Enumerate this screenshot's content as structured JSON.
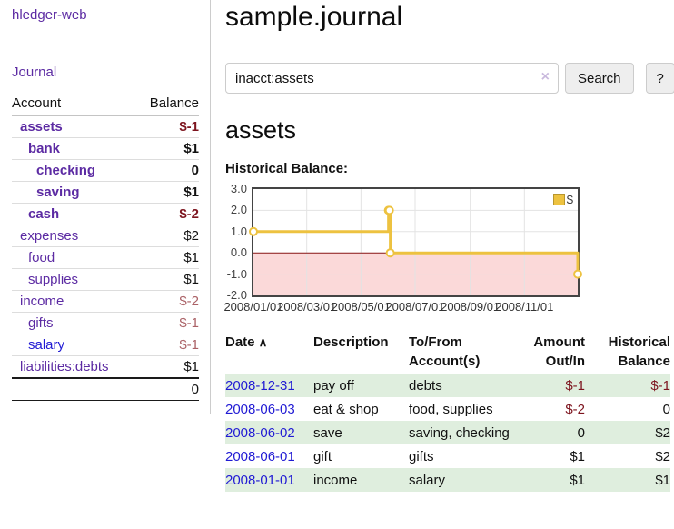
{
  "sidebar": {
    "app_title": "hledger-web",
    "nav": {
      "journal_label": "Journal"
    },
    "accounts_table": {
      "headers": {
        "account": "Account",
        "balance": "Balance"
      },
      "rows": [
        {
          "name": "assets",
          "balance": "$-1"
        },
        {
          "name": "bank",
          "balance": "$1"
        },
        {
          "name": "checking",
          "balance": "0"
        },
        {
          "name": "saving",
          "balance": "$1"
        },
        {
          "name": "cash",
          "balance": "$-2"
        },
        {
          "name": "expenses",
          "balance": "$2"
        },
        {
          "name": "food",
          "balance": "$1"
        },
        {
          "name": "supplies",
          "balance": "$1"
        },
        {
          "name": "income",
          "balance": "$-2"
        },
        {
          "name": "gifts",
          "balance": "$-1"
        },
        {
          "name": "salary",
          "balance": "$-1"
        },
        {
          "name": "liabilities:debts",
          "balance": "$1"
        }
      ],
      "total": "0"
    }
  },
  "header": {
    "title": "sample.journal"
  },
  "search": {
    "value": "inacct:assets",
    "clear_icon": "×",
    "button_label": "Search",
    "help_label": "?"
  },
  "account_page": {
    "title": "assets",
    "chart_label": "Historical Balance:"
  },
  "chart_data": {
    "type": "line",
    "title": "Historical Balance:",
    "series": [
      {
        "name": "$",
        "step": true,
        "points": [
          [
            "2008-01-01",
            1
          ],
          [
            "2008-06-01",
            2
          ],
          [
            "2008-06-02",
            2
          ],
          [
            "2008-06-03",
            0
          ],
          [
            "2008-12-31",
            -1
          ]
        ]
      }
    ],
    "xlim": [
      "2008-01-01",
      "2008-12-31"
    ],
    "ylim": [
      -2,
      3
    ],
    "y_ticks": [
      3,
      2,
      1,
      0,
      -1,
      -2
    ],
    "x_ticks": [
      "2008/01/01",
      "2008/03/01",
      "2008/05/01",
      "2008/07/01",
      "2008/09/01",
      "2008/11/01"
    ],
    "legend": {
      "label": "$",
      "position": "top-right"
    },
    "grid": true,
    "negative_region_shaded": true
  },
  "register": {
    "sort_icon": "∧",
    "headers": {
      "date": "Date",
      "description": "Description",
      "accounts": "To/From Account(s)",
      "amount": "Amount Out/In",
      "balance": "Historical Balance"
    },
    "rows": [
      {
        "date": "2008-12-31",
        "description": "pay off",
        "accounts": "debts",
        "amount": "$-1",
        "balance": "$-1"
      },
      {
        "date": "2008-06-03",
        "description": "eat & shop",
        "accounts": "food, supplies",
        "amount": "$-2",
        "balance": "0"
      },
      {
        "date": "2008-06-02",
        "description": "save",
        "accounts": "saving, checking",
        "amount": "0",
        "balance": "$2"
      },
      {
        "date": "2008-06-01",
        "description": "gift",
        "accounts": "gifts",
        "amount": "$1",
        "balance": "$2"
      },
      {
        "date": "2008-01-01",
        "description": "income",
        "accounts": "salary",
        "amount": "$1",
        "balance": "$1"
      }
    ]
  },
  "colors": {
    "link_purple": "#5c2ba3",
    "link_blue": "#211bd4",
    "negative_strong": "#7d141e",
    "negative_muted": "#aa6166",
    "row_green": "#dfeede",
    "chart_line": "#edc240",
    "chart_negative_fill": "#fbd9d9",
    "chart_zero_line": "#871414",
    "chart_grid": "#e3e3e3",
    "chart_border": "#444444"
  }
}
